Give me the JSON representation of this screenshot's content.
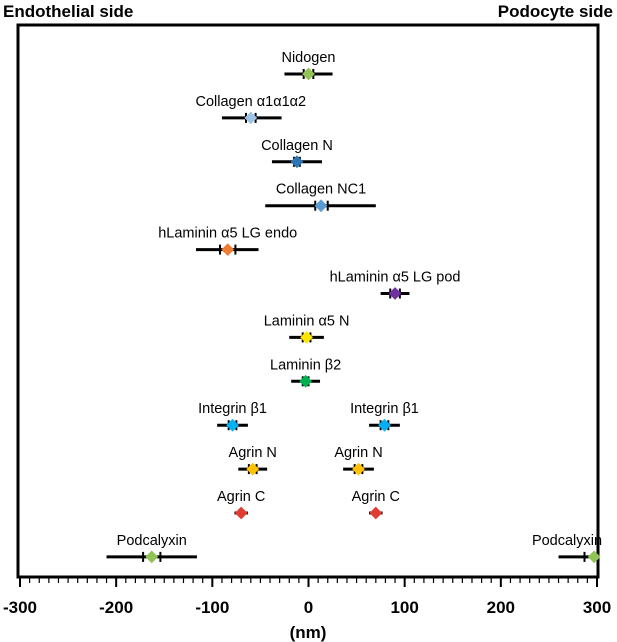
{
  "header": {
    "left_label": "Endothelial side",
    "right_label": "Podocyte side"
  },
  "chart_data": {
    "type": "scatter",
    "xlabel": "(nm)",
    "xlim": [
      -300,
      300
    ],
    "x_ticks": [
      "-300",
      "-200",
      "-100",
      "0",
      "100",
      "200",
      "300"
    ],
    "grid": false,
    "rows": [
      {
        "items": [
          {
            "label": "Nidogen",
            "x": 0,
            "range": [
              -25,
              25
            ],
            "sd_ticks": [
              -5,
              5
            ],
            "color": "#92c355"
          }
        ]
      },
      {
        "items": [
          {
            "label": "Collagen α1α1α2",
            "x": -60,
            "range": [
              -90,
              -28
            ],
            "sd_ticks": [
              -65,
              -55
            ],
            "color": "#9dc3e6"
          }
        ]
      },
      {
        "items": [
          {
            "label": "Collagen N",
            "x": -12,
            "range": [
              -38,
              14
            ],
            "sd_ticks": [
              -15,
              -9
            ],
            "color": "#2e75b6"
          }
        ]
      },
      {
        "items": [
          {
            "label": "Collagen NC1",
            "x": 13,
            "range": [
              -45,
              70
            ],
            "sd_ticks": [
              7,
              20
            ],
            "color": "#5b9bd5"
          }
        ]
      },
      {
        "items": [
          {
            "label": "hLaminin α5 LG endo",
            "x": -84,
            "range": [
              -117,
              -52
            ],
            "sd_ticks": [
              -92,
              -76
            ],
            "color": "#ed7d31"
          }
        ]
      },
      {
        "items": [
          {
            "label": "hLaminin α5 LG pod",
            "x": 90,
            "range": [
              75,
              105
            ],
            "sd_ticks": [
              85,
              95
            ],
            "color": "#7030a0"
          }
        ]
      },
      {
        "items": [
          {
            "label": "Laminin α5 N",
            "x": -2,
            "range": [
              -20,
              16
            ],
            "sd_ticks": [
              -6,
              2
            ],
            "color": "#ffe600"
          }
        ]
      },
      {
        "items": [
          {
            "label": "Laminin β2",
            "x": -3,
            "range": [
              -18,
              12
            ],
            "sd_ticks": [
              -6,
              0
            ],
            "color": "#00b050"
          }
        ]
      },
      {
        "items": [
          {
            "label": "Integrin β1",
            "x": -79,
            "range": [
              -95,
              -63
            ],
            "sd_ticks": [
              -83,
              -75
            ],
            "color": "#00b0f0"
          },
          {
            "label": "Integrin β1",
            "x": 79,
            "range": [
              63,
              95
            ],
            "sd_ticks": [
              75,
              83
            ],
            "color": "#00b0f0"
          }
        ]
      },
      {
        "items": [
          {
            "label": "Agrin N",
            "x": -58,
            "range": [
              -73,
              -43
            ],
            "sd_ticks": [
              -62,
              -54
            ],
            "color": "#ffc000"
          },
          {
            "label": "Agrin N",
            "x": 52,
            "range": [
              36,
              68
            ],
            "sd_ticks": [
              48,
              56
            ],
            "color": "#ffc000"
          }
        ]
      },
      {
        "items": [
          {
            "label": "Agrin C",
            "x": -70,
            "range": [
              -77,
              -63
            ],
            "sd_ticks": [],
            "color": "#e03c31"
          },
          {
            "label": "Agrin C",
            "x": 70,
            "range": [
              63,
              77
            ],
            "sd_ticks": [],
            "color": "#e03c31"
          }
        ]
      },
      {
        "items": [
          {
            "label": "Podcalyxin",
            "x": -163,
            "range": [
              -210,
              -116
            ],
            "sd_ticks": [
              -172,
              -154
            ],
            "color": "#92c355"
          },
          {
            "label": "Podcalyxin",
            "x": 297,
            "range": [
              260,
              300
            ],
            "sd_ticks": [
              287
            ],
            "color": "#92c355"
          }
        ]
      }
    ]
  }
}
